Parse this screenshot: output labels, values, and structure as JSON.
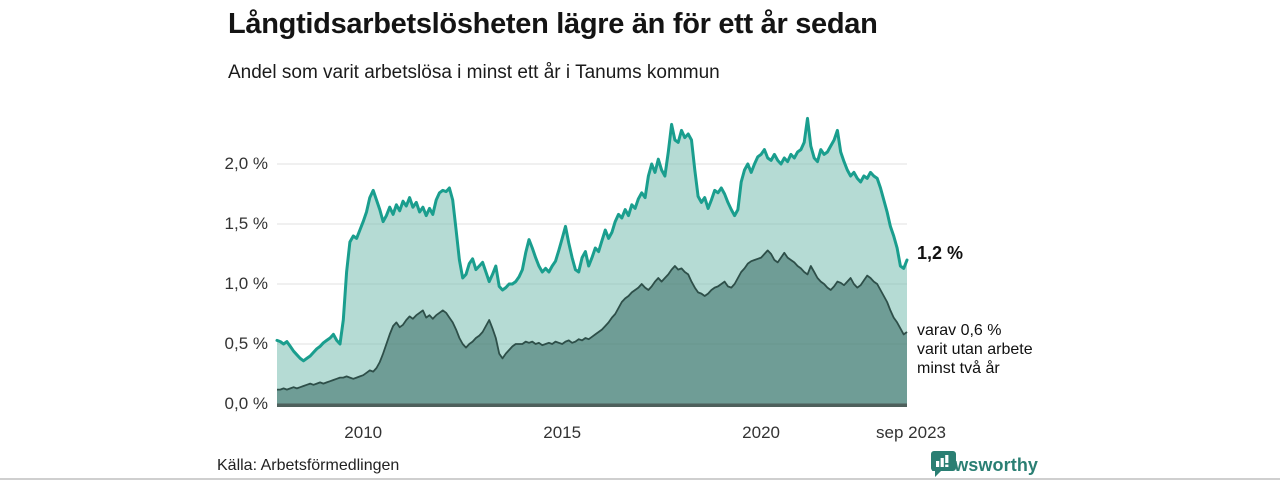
{
  "header": {
    "title": "Långtidsarbetslösheten lägre än för ett år sedan",
    "subtitle": "Andel som varit arbetslösa i minst ett år i Tanums kommun"
  },
  "annotations": {
    "total_end_label": "1,2 %",
    "dark_line1": "varav 0,6 %",
    "dark_line2": "varit utan arbete",
    "dark_line3": "minst två år"
  },
  "footer": {
    "source": "Källa: Arbetsförmedlingen",
    "brand": "Newsworthy"
  },
  "colors": {
    "line_total": "#1a9e8e",
    "fill_total": "rgba(121,190,177,0.55)",
    "line_dark": "#2e4f49",
    "fill_dark": "rgba(41,95,88,0.5)",
    "gridline": "#e0e0e0",
    "baseline": "#4e605c",
    "brand_teal": "#2a7f73"
  },
  "chart_data": {
    "type": "area",
    "title": "Långtidsarbetslösheten lägre än för ett år sedan",
    "subtitle": "Andel som varit arbetslösa i minst ett år i Tanums kommun",
    "unit": "%",
    "frequency": "monthly",
    "x_start": "2007-11",
    "x_end": "2023-09",
    "ylim": [
      0,
      2.5
    ],
    "grid": true,
    "legend_position": "none",
    "y_ticks": [
      {
        "label": "0,0 %",
        "value": 0.0
      },
      {
        "label": "0,5 %",
        "value": 0.5
      },
      {
        "label": "1,0 %",
        "value": 1.0
      },
      {
        "label": "1,5 %",
        "value": 1.5
      },
      {
        "label": "2,0 %",
        "value": 2.0
      }
    ],
    "x_ticks": [
      {
        "label": "2010",
        "index": 26
      },
      {
        "label": "2015",
        "index": 86
      },
      {
        "label": "2020",
        "index": 146
      },
      {
        "label": "sep 2023",
        "index": 190
      }
    ],
    "series": [
      {
        "name": "Andel arbetslösa minst ett år",
        "end_value": 1.2,
        "end_label": "1,2 %",
        "values": [
          0.53,
          0.52,
          0.5,
          0.52,
          0.48,
          0.44,
          0.41,
          0.38,
          0.36,
          0.38,
          0.4,
          0.43,
          0.46,
          0.48,
          0.51,
          0.53,
          0.55,
          0.58,
          0.53,
          0.5,
          0.7,
          1.1,
          1.35,
          1.4,
          1.38,
          1.45,
          1.52,
          1.6,
          1.72,
          1.78,
          1.7,
          1.62,
          1.52,
          1.57,
          1.64,
          1.58,
          1.66,
          1.61,
          1.69,
          1.65,
          1.72,
          1.64,
          1.68,
          1.6,
          1.64,
          1.57,
          1.63,
          1.58,
          1.7,
          1.76,
          1.78,
          1.77,
          1.8,
          1.7,
          1.45,
          1.2,
          1.05,
          1.08,
          1.17,
          1.21,
          1.12,
          1.15,
          1.18,
          1.1,
          1.02,
          1.08,
          1.15,
          0.98,
          0.95,
          0.97,
          1.0,
          1.0,
          1.02,
          1.06,
          1.12,
          1.26,
          1.37,
          1.3,
          1.22,
          1.15,
          1.1,
          1.13,
          1.1,
          1.15,
          1.19,
          1.28,
          1.38,
          1.48,
          1.34,
          1.22,
          1.12,
          1.1,
          1.22,
          1.27,
          1.15,
          1.22,
          1.3,
          1.27,
          1.36,
          1.45,
          1.38,
          1.43,
          1.52,
          1.58,
          1.55,
          1.62,
          1.57,
          1.66,
          1.63,
          1.71,
          1.76,
          1.72,
          1.9,
          2.0,
          1.93,
          2.04,
          1.95,
          1.9,
          2.1,
          2.33,
          2.2,
          2.18,
          2.28,
          2.22,
          2.25,
          2.2,
          1.95,
          1.73,
          1.68,
          1.72,
          1.63,
          1.7,
          1.78,
          1.76,
          1.8,
          1.75,
          1.68,
          1.62,
          1.57,
          1.62,
          1.85,
          1.95,
          2.0,
          1.93,
          2.0,
          2.06,
          2.08,
          2.12,
          2.05,
          2.03,
          2.08,
          2.03,
          2.0,
          2.05,
          2.02,
          2.08,
          2.05,
          2.1,
          2.12,
          2.18,
          2.38,
          2.15,
          2.05,
          2.02,
          2.12,
          2.08,
          2.1,
          2.15,
          2.2,
          2.28,
          2.1,
          2.02,
          1.95,
          1.9,
          1.93,
          1.88,
          1.85,
          1.9,
          1.88,
          1.93,
          1.9,
          1.88,
          1.8,
          1.7,
          1.6,
          1.48,
          1.4,
          1.3,
          1.15,
          1.13,
          1.2
        ]
      },
      {
        "name": "varav utan arbete minst två år",
        "end_value": 0.6,
        "end_label": "0,6 %",
        "values": [
          0.12,
          0.12,
          0.13,
          0.12,
          0.13,
          0.14,
          0.13,
          0.14,
          0.15,
          0.16,
          0.17,
          0.16,
          0.17,
          0.18,
          0.17,
          0.18,
          0.19,
          0.2,
          0.21,
          0.22,
          0.22,
          0.23,
          0.22,
          0.21,
          0.22,
          0.23,
          0.24,
          0.26,
          0.28,
          0.27,
          0.3,
          0.35,
          0.42,
          0.5,
          0.58,
          0.65,
          0.68,
          0.64,
          0.66,
          0.7,
          0.73,
          0.71,
          0.74,
          0.76,
          0.78,
          0.72,
          0.74,
          0.71,
          0.74,
          0.76,
          0.78,
          0.76,
          0.72,
          0.68,
          0.62,
          0.55,
          0.5,
          0.47,
          0.5,
          0.52,
          0.55,
          0.57,
          0.6,
          0.65,
          0.7,
          0.63,
          0.55,
          0.42,
          0.38,
          0.42,
          0.45,
          0.48,
          0.5,
          0.5,
          0.5,
          0.52,
          0.51,
          0.52,
          0.5,
          0.51,
          0.49,
          0.5,
          0.51,
          0.5,
          0.52,
          0.51,
          0.5,
          0.52,
          0.53,
          0.51,
          0.52,
          0.54,
          0.53,
          0.55,
          0.54,
          0.56,
          0.58,
          0.6,
          0.62,
          0.65,
          0.68,
          0.72,
          0.75,
          0.8,
          0.85,
          0.88,
          0.9,
          0.93,
          0.95,
          0.97,
          1.0,
          0.97,
          0.95,
          0.98,
          1.02,
          1.05,
          1.02,
          1.05,
          1.08,
          1.12,
          1.15,
          1.12,
          1.13,
          1.1,
          1.08,
          1.02,
          0.97,
          0.93,
          0.92,
          0.9,
          0.92,
          0.95,
          0.97,
          0.98,
          1.0,
          1.02,
          0.98,
          0.97,
          1.0,
          1.05,
          1.1,
          1.13,
          1.17,
          1.19,
          1.2,
          1.21,
          1.22,
          1.25,
          1.28,
          1.25,
          1.2,
          1.18,
          1.22,
          1.26,
          1.22,
          1.2,
          1.18,
          1.15,
          1.13,
          1.1,
          1.08,
          1.15,
          1.1,
          1.05,
          1.02,
          1.0,
          0.97,
          0.95,
          0.98,
          1.02,
          1.01,
          0.99,
          1.02,
          1.05,
          1.0,
          0.97,
          0.99,
          1.03,
          1.07,
          1.05,
          1.02,
          1.0,
          0.95,
          0.9,
          0.85,
          0.78,
          0.72,
          0.68,
          0.63,
          0.58,
          0.6
        ]
      }
    ]
  }
}
